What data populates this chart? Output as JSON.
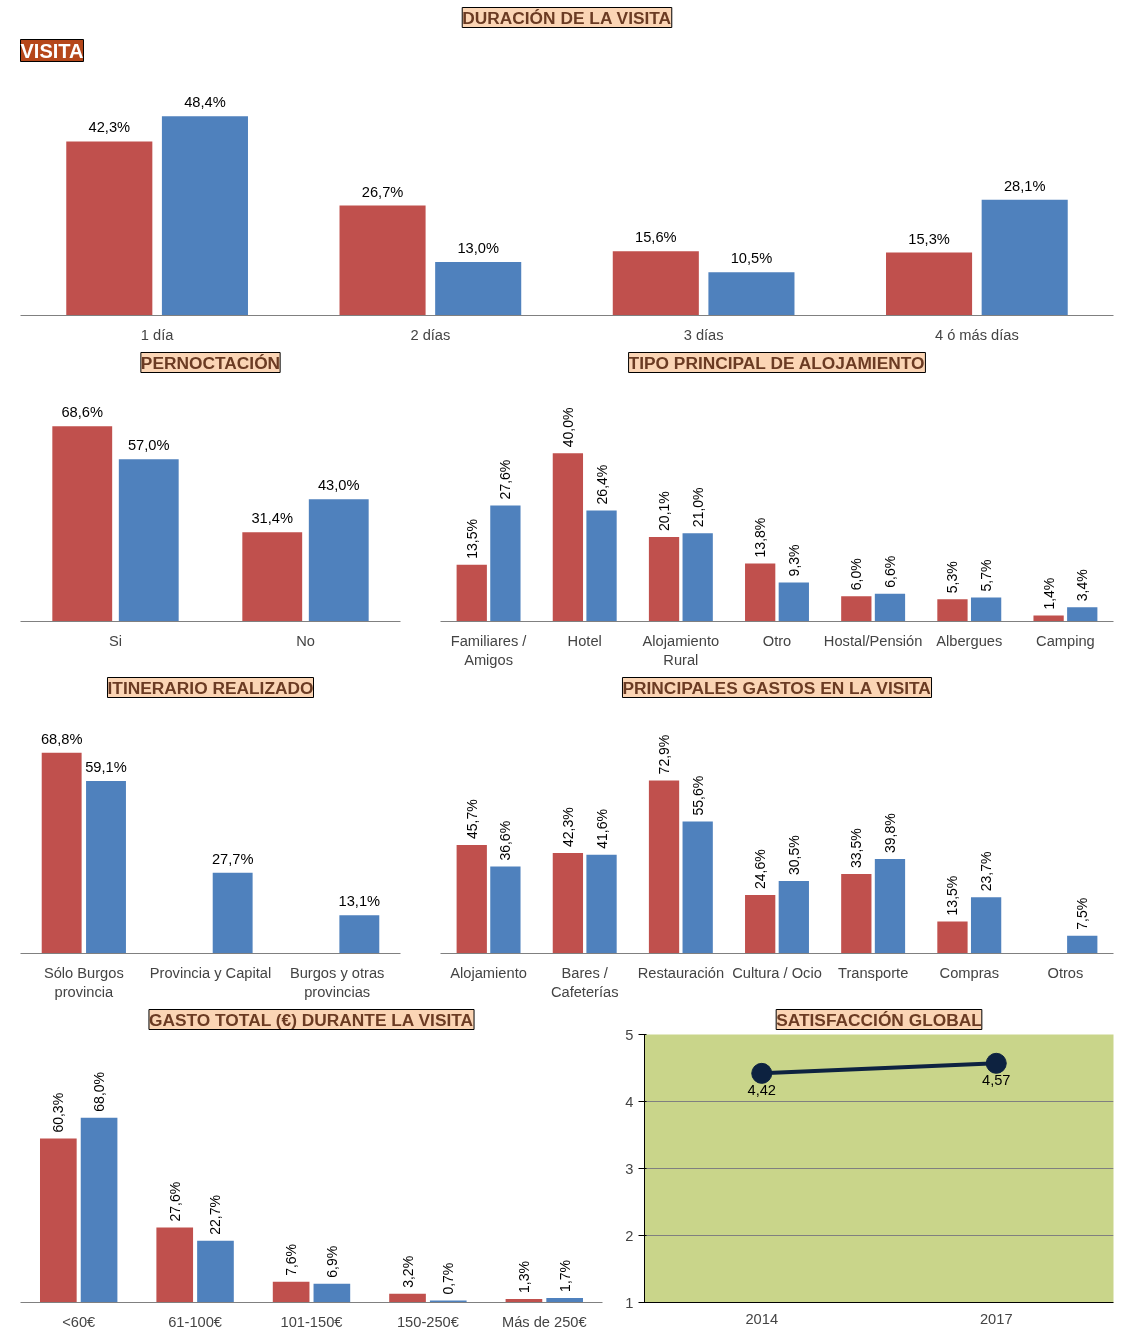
{
  "chart_data": [
    {
      "type": "bar",
      "title": "VISITA",
      "subtitle": "DURACIÓN DE LA VISITA",
      "categories": [
        "1 día",
        "2 días",
        "3 días",
        "4 ó más días"
      ],
      "tick_labels": "x",
      "series": [
        {
          "color": "#c0504d",
          "values": [
            42.3,
            26.7,
            15.6,
            15.3
          ],
          "value_labels": [
            "42,3%",
            "26,7%",
            "15,6%",
            "15,3%"
          ]
        },
        {
          "color": "#4f81bd",
          "values": [
            48.4,
            13.0,
            10.5,
            28.1
          ],
          "value_labels": [
            "48,4%",
            "13,0%",
            "10,5%",
            "28,1%"
          ]
        }
      ]
    },
    {
      "type": "bar",
      "title": "PERNOCTACIÓN",
      "categories": [
        "Si",
        "No"
      ],
      "tick_labels": "x",
      "series": [
        {
          "color": "#c0504d",
          "values": [
            68.6,
            31.4
          ],
          "value_labels": [
            "68,6%",
            "31,4%"
          ]
        },
        {
          "color": "#4f81bd",
          "values": [
            57.0,
            43.0
          ],
          "value_labels": [
            "57,0%",
            "43,0%"
          ]
        }
      ]
    },
    {
      "type": "bar",
      "title": "TIPO PRINCIPAL DE ALOJAMIENTO",
      "categories": [
        "Familiares / Amigos",
        "Hotel",
        "Alojamiento Rural",
        "Otro",
        "Hostal/Pensión",
        "Albergues",
        "Camping"
      ],
      "tick_labels": "x",
      "series": [
        {
          "color": "#c0504d",
          "values": [
            13.5,
            40.0,
            20.1,
            13.8,
            6.0,
            5.3,
            1.4
          ],
          "value_labels": [
            "13,5%",
            "40,0%",
            "20,1%",
            "13,8%",
            "6,0%",
            "5,3%",
            "1,4%"
          ]
        },
        {
          "color": "#4f81bd",
          "values": [
            27.6,
            26.4,
            21.0,
            9.3,
            6.6,
            5.7,
            3.4
          ],
          "value_labels": [
            "27,6%",
            "26,4%",
            "21,0%",
            "9,3%",
            "6,6%",
            "5,7%",
            "3,4%"
          ]
        }
      ]
    },
    {
      "type": "bar",
      "title": "ITINERARIO REALIZADO",
      "categories": [
        "Sólo Burgos provincia",
        "Provincia y Capital",
        "Burgos y otras provincias"
      ],
      "tick_labels": "x",
      "series": [
        {
          "color": "#c0504d",
          "values": [
            68.8,
            null,
            null
          ],
          "value_labels": [
            "68,8%",
            null,
            null
          ]
        },
        {
          "color": "#4f81bd",
          "values": [
            59.1,
            27.7,
            13.1
          ],
          "value_labels": [
            "59,1%",
            "27,7%",
            "13,1%"
          ]
        }
      ]
    },
    {
      "type": "bar",
      "title": "PRINCIPALES GASTOS EN LA VISITA",
      "categories": [
        "Alojamiento",
        "Bares / Cafeterías",
        "Restauración",
        "Cultura / Ocio",
        "Transporte",
        "Compras",
        "Otros"
      ],
      "tick_labels": "x",
      "series": [
        {
          "color": "#c0504d",
          "values": [
            45.7,
            42.3,
            72.9,
            24.6,
            33.5,
            13.5,
            null
          ],
          "value_labels": [
            "45,7%",
            "42,3%",
            "72,9%",
            "24,6%",
            "33,5%",
            "13,5%",
            null
          ]
        },
        {
          "color": "#4f81bd",
          "values": [
            36.6,
            41.6,
            55.6,
            30.5,
            39.8,
            23.7,
            7.5
          ],
          "value_labels": [
            "36,6%",
            "41,6%",
            "55,6%",
            "30,5%",
            "39,8%",
            "23,7%",
            "7,5%"
          ]
        }
      ]
    },
    {
      "type": "bar",
      "title": "GASTO TOTAL (€) DURANTE LA VISITA",
      "categories": [
        "<60€",
        "61-100€",
        "101-150€",
        "150-250€",
        "Más de 250€"
      ],
      "tick_labels": "x",
      "series": [
        {
          "color": "#c0504d",
          "values": [
            60.3,
            27.6,
            7.6,
            3.2,
            1.3
          ],
          "value_labels": [
            "60,3%",
            "27,6%",
            "7,6%",
            "3,2%",
            "1,3%"
          ]
        },
        {
          "color": "#4f81bd",
          "values": [
            68.0,
            22.7,
            6.9,
            0.7,
            1.7
          ],
          "value_labels": [
            "68,0%",
            "22,7%",
            "6,9%",
            "0,7%",
            "1,7%"
          ]
        }
      ]
    },
    {
      "type": "line",
      "title": "SATISFACCIÓN GLOBAL",
      "categories": [
        "2014",
        "2017"
      ],
      "ylim": [
        1,
        5
      ],
      "yticks": [
        1,
        2,
        3,
        4,
        5
      ],
      "grid": "y",
      "marker": "circle",
      "series": [
        {
          "color": "#0d2240",
          "values": [
            4.42,
            4.57
          ],
          "value_labels": [
            "4,42",
            "4,57"
          ]
        }
      ]
    }
  ]
}
